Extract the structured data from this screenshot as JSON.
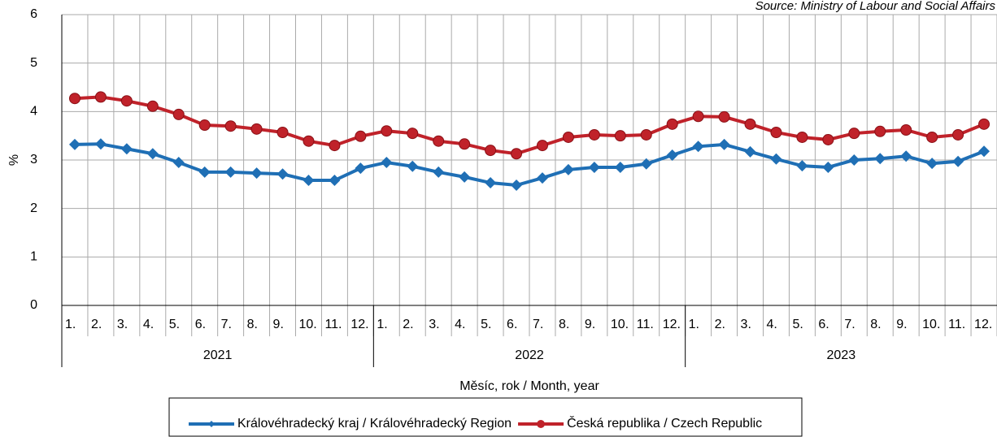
{
  "chart_data": {
    "type": "line",
    "source": "Source: Ministry of Labour and Social Affairs",
    "y_label": "%",
    "x_label": "Měsíc, rok / Month, year",
    "categories": [
      "1.",
      "2.",
      "3.",
      "4.",
      "5.",
      "6.",
      "7.",
      "8.",
      "9.",
      "10.",
      "11.",
      "12.",
      "1.",
      "2.",
      "3.",
      "4.",
      "5.",
      "6.",
      "7.",
      "8.",
      "9.",
      "10.",
      "11.",
      "12.",
      "1.",
      "2.",
      "3.",
      "4.",
      "5.",
      "6.",
      "7.",
      "8.",
      "9.",
      "10.",
      "11.",
      "12."
    ],
    "years": [
      "2021",
      "2022",
      "2023"
    ],
    "ylim": [
      0,
      6
    ],
    "yticks": [
      0,
      1,
      2,
      3,
      4,
      5,
      6
    ],
    "grid": true,
    "series": [
      {
        "name": "Královéhradecký kraj / Královéhradecký Region",
        "color": "#1f6fb5",
        "marker": "diamond",
        "values": [
          3.32,
          3.33,
          3.23,
          3.13,
          2.95,
          2.75,
          2.75,
          2.73,
          2.71,
          2.58,
          2.58,
          2.83,
          2.95,
          2.87,
          2.75,
          2.65,
          2.53,
          2.48,
          2.63,
          2.8,
          2.85,
          2.85,
          2.92,
          3.1,
          3.28,
          3.32,
          3.17,
          3.02,
          2.88,
          2.85,
          3.0,
          3.03,
          3.08,
          2.93,
          2.97,
          3.18
        ]
      },
      {
        "name": "Česká republika / Czech Republic",
        "color": "#c0222a",
        "marker": "circle",
        "values": [
          4.27,
          4.3,
          4.22,
          4.11,
          3.94,
          3.72,
          3.7,
          3.64,
          3.57,
          3.39,
          3.3,
          3.49,
          3.6,
          3.55,
          3.39,
          3.33,
          3.2,
          3.13,
          3.3,
          3.47,
          3.52,
          3.5,
          3.52,
          3.74,
          3.9,
          3.89,
          3.74,
          3.57,
          3.47,
          3.42,
          3.55,
          3.59,
          3.62,
          3.47,
          3.52,
          3.74
        ]
      }
    ]
  }
}
